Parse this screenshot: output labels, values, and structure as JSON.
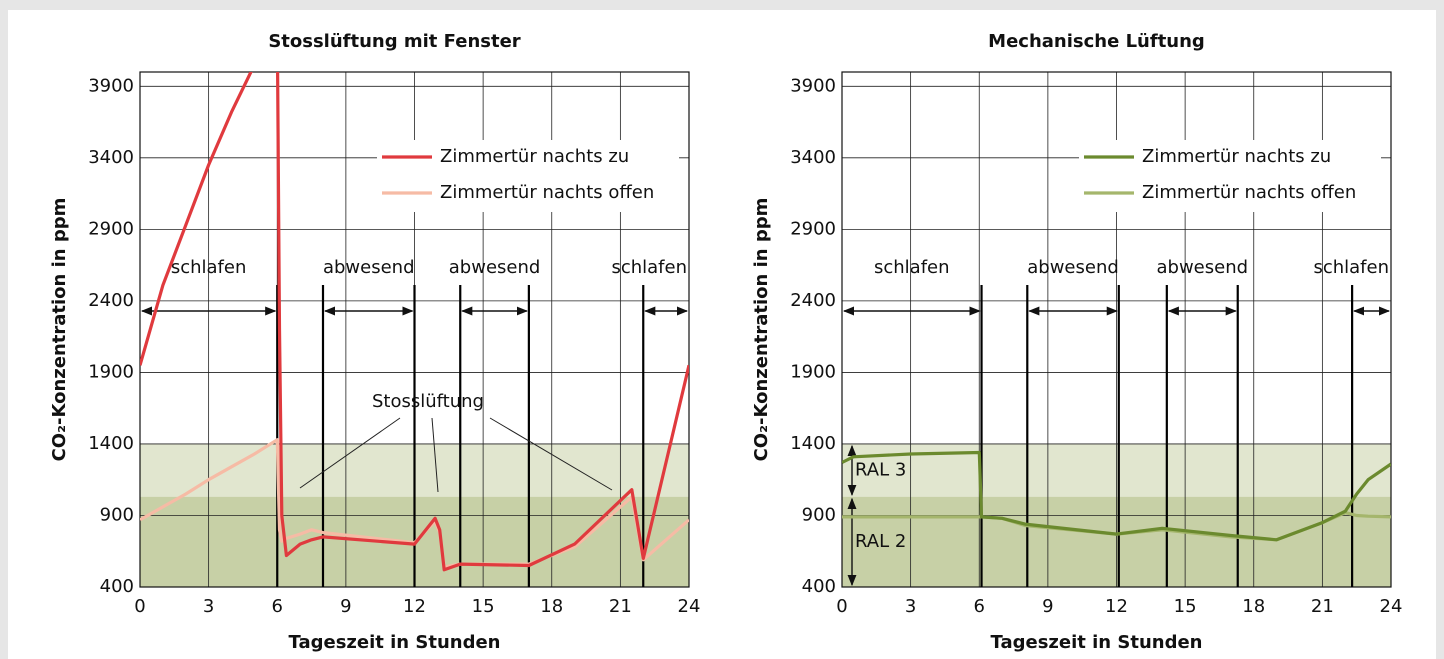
{
  "chart_data": [
    {
      "type": "line",
      "title": "Stosslüftung mit Fenster",
      "x_label": "Tageszeit in Stunden",
      "y_label": "CO₂-Konzentration in ppm",
      "xlim": [
        0,
        24
      ],
      "xticks": [
        0,
        3,
        6,
        9,
        12,
        15,
        18,
        21,
        24
      ],
      "ylim": [
        400,
        4000
      ],
      "yticks": [
        400,
        900,
        1400,
        1900,
        2400,
        2900,
        3400,
        3900
      ],
      "grid": true,
      "bands": [
        {
          "from": 400,
          "to": 1400,
          "color": "#e1e6cf"
        },
        {
          "from": 400,
          "to": 1030,
          "color": "#c7d0a6"
        }
      ],
      "periods": [
        {
          "label": "schlafen",
          "start": 0,
          "end": 6
        },
        {
          "label": "abwesend",
          "start": 8,
          "end": 12
        },
        {
          "label": "abwesend",
          "start": 14,
          "end": 17
        },
        {
          "label": "schlafen",
          "start": 22,
          "end": 24
        }
      ],
      "annotation": "Stosslüftung",
      "legend": "upper right",
      "x": [
        0,
        1,
        2,
        3,
        4,
        5,
        6,
        6.1,
        6.2,
        6.4,
        7,
        7.5,
        8,
        12,
        12.9,
        13.1,
        13.3,
        14,
        17,
        19,
        21.5,
        22,
        24
      ],
      "series": [
        {
          "name": "Zimmertür nachts zu",
          "color": "#e03a3e",
          "values": [
            1950,
            2510,
            2930,
            3350,
            3720,
            4050,
            4300,
            2200,
            900,
            620,
            700,
            730,
            750,
            700,
            880,
            800,
            520,
            560,
            550,
            700,
            1080,
            600,
            1950
          ]
        },
        {
          "name": "Zimmertür nachts offen",
          "color": "#f6bba5",
          "values": [
            870,
            960,
            1050,
            1150,
            1240,
            1330,
            1430,
            800,
            720,
            740,
            770,
            800,
            780,
            710,
            860,
            780,
            540,
            560,
            560,
            680,
            1030,
            590,
            870
          ]
        }
      ]
    },
    {
      "type": "line",
      "title": "Mechanische Lüftung",
      "x_label": "Tageszeit in Stunden",
      "y_label": "CO₂-Konzentration in ppm",
      "xlim": [
        0,
        24
      ],
      "xticks": [
        0,
        3,
        6,
        9,
        12,
        15,
        18,
        21,
        24
      ],
      "ylim": [
        400,
        4000
      ],
      "yticks": [
        400,
        900,
        1400,
        1900,
        2400,
        2900,
        3400,
        3900
      ],
      "grid": true,
      "bands": [
        {
          "from": 400,
          "to": 1400,
          "color": "#e1e6cf"
        },
        {
          "from": 400,
          "to": 1030,
          "color": "#c7d0a6"
        }
      ],
      "band_labels": [
        {
          "label": "RAL 3",
          "from": 1400,
          "to": 1030
        },
        {
          "label": "RAL 2",
          "from": 1030,
          "to": 400
        }
      ],
      "periods": [
        {
          "label": "schlafen",
          "start": 0,
          "end": 6.1
        },
        {
          "label": "abwesend",
          "start": 8.1,
          "end": 12.1
        },
        {
          "label": "abwesend",
          "start": 14.2,
          "end": 17.3
        },
        {
          "label": "schlafen",
          "start": 22.3,
          "end": 24
        }
      ],
      "legend": "upper right",
      "x": [
        0,
        0.5,
        3,
        6,
        6.1,
        7,
        8,
        12,
        14,
        17,
        19,
        21,
        22,
        22.5,
        23,
        24
      ],
      "series": [
        {
          "name": "Zimmertür nachts zu",
          "color": "#6b8a2e",
          "values": [
            1270,
            1310,
            1330,
            1340,
            890,
            880,
            840,
            770,
            810,
            760,
            730,
            850,
            930,
            1050,
            1150,
            1260
          ]
        },
        {
          "name": "Zimmertür nachts offen",
          "color": "#a5b66c",
          "values": [
            890,
            890,
            890,
            890,
            890,
            880,
            830,
            770,
            800,
            750,
            730,
            850,
            920,
            900,
            895,
            890
          ]
        }
      ]
    }
  ]
}
